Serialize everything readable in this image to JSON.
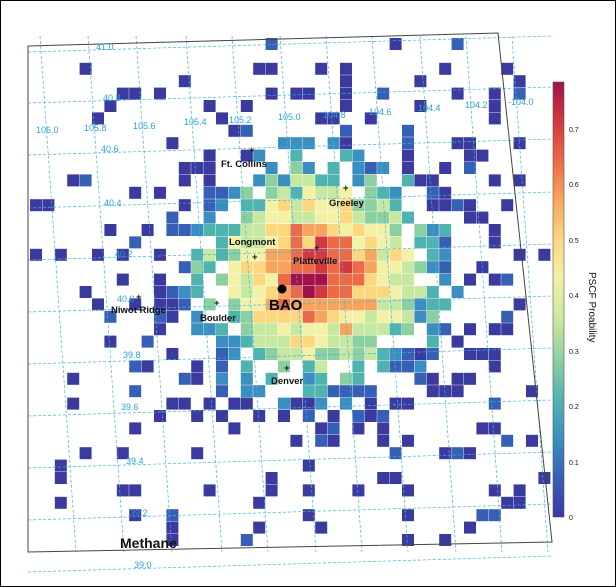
{
  "map": {
    "species_label": "Methane",
    "colorbar": {
      "title": "PSCF Proability",
      "ticks": [
        "0",
        "0.1",
        "0.2",
        "0.3",
        "0.4",
        "0.5",
        "0.6",
        "0.7"
      ],
      "range": [
        0,
        0.78
      ],
      "colors": [
        "#3b3a9e",
        "#3660b5",
        "#3b8fc0",
        "#4fb3b0",
        "#8ccfa0",
        "#c7e8a0",
        "#f2f1a6",
        "#fbd77e",
        "#f7a55c",
        "#ec6a46",
        "#d2383f",
        "#a0124a"
      ]
    },
    "latitude_labels": [
      "41.0",
      "40.8",
      "40.6",
      "40.4",
      "40.2",
      "40.0",
      "39.8",
      "39.6",
      "39.4",
      "39.2",
      "39.0"
    ],
    "longitude_labels": [
      "106.0",
      "105.8",
      "105.6",
      "105.4",
      "105.2",
      "105.0",
      "104.8",
      "104.6",
      "104.4",
      "104.2",
      "-104.0"
    ],
    "locations": [
      {
        "name": "Ft. Collins"
      },
      {
        "name": "Greeley"
      },
      {
        "name": "Longmont"
      },
      {
        "name": "Platteville"
      },
      {
        "name": "Niwot Ridge"
      },
      {
        "name": "Boulder"
      },
      {
        "name": "Denver"
      }
    ],
    "site": {
      "name": "BAO"
    }
  }
}
